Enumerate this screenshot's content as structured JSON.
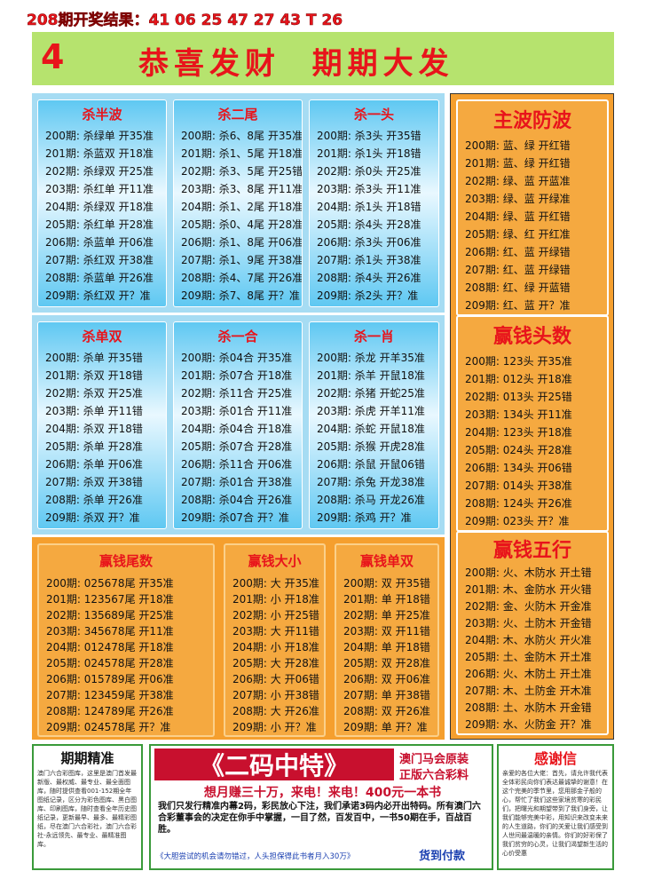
{
  "header": {
    "result": "208期开奖结果：41 06 25 47 27 43 T 26",
    "number": "4",
    "slogan": "恭喜发财  期期大发"
  },
  "panels": [
    {
      "title": "杀半波",
      "rows": [
        "200期: 杀绿单 开35准",
        "201期: 杀蓝双 开18准",
        "202期: 杀绿双 开25准",
        "203期: 杀红单 开11准",
        "204期: 杀绿双 开18准",
        "205期: 杀红单 开28准",
        "206期: 杀蓝单 开06准",
        "207期: 杀红双 开38准",
        "208期: 杀蓝单 开26准",
        "209期: 杀红双 开？准"
      ]
    },
    {
      "title": "杀二尾",
      "rows": [
        "200期: 杀6、8尾 开35准",
        "201期: 杀1、5尾 开18准",
        "202期: 杀3、5尾 开25错",
        "203期: 杀3、8尾 开11准",
        "204期: 杀1、2尾 开18准",
        "205期: 杀0、4尾 开28准",
        "206期: 杀1、8尾 开06准",
        "207期: 杀1、9尾 开38准",
        "208期: 杀4、7尾 开26准",
        "209期: 杀7、8尾 开？准"
      ]
    },
    {
      "title": "杀一头",
      "rows": [
        "200期: 杀3头 开35错",
        "201期: 杀1头 开18错",
        "202期: 杀0头 开25准",
        "203期: 杀3头 开11准",
        "204期: 杀1头 开18错",
        "205期: 杀4头 开28准",
        "206期: 杀3头 开06准",
        "207期: 杀1头 开38准",
        "208期: 杀4头 开26准",
        "209期: 杀2头 开？准"
      ]
    },
    {
      "title": "杀单双",
      "rows": [
        "200期: 杀单 开35错",
        "201期: 杀双 开18错",
        "202期: 杀双 开25准",
        "203期: 杀单 开11错",
        "204期: 杀双 开18错",
        "205期: 杀单 开28准",
        "206期: 杀单 开06准",
        "207期: 杀双 开38错",
        "208期: 杀单 开26准",
        "209期: 杀双 开？准"
      ]
    },
    {
      "title": "杀一合",
      "rows": [
        "200期: 杀04合 开35准",
        "201期: 杀07合 开18准",
        "202期: 杀11合 开25准",
        "203期: 杀01合 开11准",
        "204期: 杀04合 开18准",
        "205期: 杀07合 开28准",
        "206期: 杀11合 开06准",
        "207期: 杀01合 开38准",
        "208期: 杀04合 开26准",
        "209期: 杀07合 开？准"
      ]
    },
    {
      "title": "杀一肖",
      "rows": [
        "200期: 杀龙 开羊35准",
        "201期: 杀羊 开鼠18准",
        "202期: 杀猪 开蛇25准",
        "203期: 杀虎 开羊11准",
        "204期: 杀蛇 开鼠18准",
        "205期: 杀猴 开虎28准",
        "206期: 杀鼠 开鼠06错",
        "207期: 杀兔 开龙38准",
        "208期: 杀马 开龙26准",
        "209期: 杀鸡 开？准"
      ]
    },
    {
      "title": "赢钱尾数",
      "rows": [
        "200期: 025678尾 开35准",
        "201期: 123567尾 开18准",
        "202期: 135689尾 开25准",
        "203期: 345678尾 开11准",
        "204期: 012478尾 开18准",
        "205期: 024578尾 开28准",
        "206期: 015789尾 开06准",
        "207期: 123459尾 开38准",
        "208期: 124789尾 开26准",
        "209期: 024578尾 开？准"
      ]
    },
    {
      "title": "赢钱大小",
      "rows": [
        "200期: 大 开35准",
        "201期: 小 开18准",
        "202期: 小 开25错",
        "203期: 大 开11错",
        "204期: 小 开18准",
        "205期: 大 开28准",
        "206期: 大 开06错",
        "207期: 小 开38错",
        "208期: 大 开26准",
        "209期: 小 开？准"
      ]
    },
    {
      "title": "赢钱单双",
      "rows": [
        "200期: 双 开35错",
        "201期: 单 开18错",
        "202期: 单 开25准",
        "203期: 双 开11错",
        "204期: 单 开18错",
        "205期: 双 开28准",
        "206期: 双 开06准",
        "207期: 单 开38错",
        "208期: 双 开26准",
        "209期: 单 开？准"
      ]
    },
    {
      "title": "主波防波",
      "rows": [
        "200期: 蓝、绿 开红错",
        "201期: 蓝、绿 开红错",
        "202期: 绿、蓝 开蓝准",
        "203期: 绿、蓝 开绿准",
        "204期: 绿、蓝 开红错",
        "205期: 绿、红 开红准",
        "206期: 红、蓝 开绿错",
        "207期: 红、蓝 开绿错",
        "208期: 红、绿 开蓝错",
        "209期: 红、蓝 开？准"
      ]
    },
    {
      "title": "赢钱头数",
      "rows": [
        "200期: 123头 开35准",
        "201期: 012头 开18准",
        "202期: 013头 开25错",
        "203期: 134头 开11准",
        "204期: 123头 开18准",
        "205期: 024头 开28准",
        "206期: 134头 开06错",
        "207期: 014头 开38准",
        "208期: 124头 开26准",
        "209期: 023头 开？准"
      ]
    },
    {
      "title": "赢钱五行",
      "rows": [
        "200期: 火、木防水 开土错",
        "201期: 木、金防水 开火错",
        "202期: 金、火防木 开金准",
        "203期: 火、土防木 开金错",
        "204期: 木、水防火 开火准",
        "205期: 土、金防木 开土准",
        "206期: 火、木防土 开土准",
        "207期: 木、土防金 开木准",
        "208期: 土、水防木 开金错",
        "209期: 水、火防金 开？准"
      ]
    }
  ],
  "footer": {
    "left_title": "期期精准",
    "left_text": "澳门六合彩图库，这里是澳门首发最新版、最权威、最专业、最全面图库，随时提供查看001-152期全年图纸记录，区分为彩色图库、黑白图库、印刷图库，随时查看全年历史图纸记录，更新最早、最多、最精彩图纸，尽在澳门六合彩社，澳门六合彩社-永远领先、最专业、最精准图库。",
    "center_title": "《二码中特》",
    "center_tag1": "澳门马会原装",
    "center_tag2": "正版六合彩料",
    "center_slogan": "想月赚三十万，来电！来电！400元一本书",
    "center_text": "我们只发行精准内幕2码，彩民放心下注，我们承诺3码内必开出特码。所有澳门六合彩董事会的决定在你手中掌握，一目了然，百发百中，一书50期在手，百战百胜。",
    "center_note": "《大胆尝试的机会请勿错过，人头担保得此书者月入30万》",
    "center_pay": "货到付款",
    "right_title": "感谢信",
    "right_text": "亲爱的各位大佬：首先，请允许我代表全体彩民向你们表达最诚挚的谢意！在这个完美的季节里，您用那金子般的心，帮忙了我们这些家境贫寒的彩民们，把曙光和期望带到了我们身旁，让我们能够完美中彩，用知识来改变未来的人生道路，你们的关爱让我们感受到人世间最温暖的亲情。你们的好彩保了我们贫穷的心灵，让我们渴望新生活的心价受惠"
  }
}
